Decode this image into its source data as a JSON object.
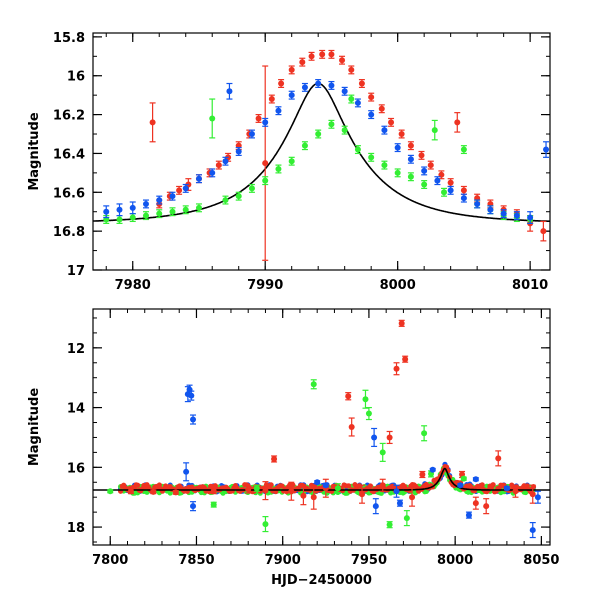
{
  "colors": {
    "red": "#ee3322",
    "green": "#33ee33",
    "blue": "#1155ee",
    "model": "#000000"
  },
  "chart_data": [
    {
      "type": "scatter",
      "title": "",
      "xlabel": "",
      "ylabel": "Magnitude",
      "xlim": [
        7977,
        8011.5
      ],
      "ylim": [
        17.0,
        15.78
      ],
      "y_inverted": true,
      "grid": false,
      "xticks": [
        7980,
        7990,
        8000,
        8010
      ],
      "yticks": [
        15.8,
        16,
        16.2,
        16.4,
        16.6,
        16.8,
        17
      ],
      "ytick_labels": [
        "15.8",
        "16",
        "16.2",
        "16.4",
        "16.6",
        "16.8",
        "17"
      ],
      "model_curve": {
        "baseline_mag": 16.76,
        "peak_mag": 16.04,
        "peak_time": 7994.0,
        "tE": 6.2
      },
      "series": [
        {
          "color": "red",
          "points": [
            [
              7981.5,
              16.24,
              0.1
            ],
            [
              7982.0,
              16.66,
              0.02
            ],
            [
              7982.8,
              16.62,
              0.02
            ],
            [
              7983.5,
              16.59,
              0.02
            ],
            [
              7984.2,
              16.56,
              0.03
            ],
            [
              7985.0,
              16.53,
              0.02
            ],
            [
              7985.8,
              16.5,
              0.02
            ],
            [
              7986.5,
              16.46,
              0.02
            ],
            [
              7987.2,
              16.42,
              0.02
            ],
            [
              7988.0,
              16.36,
              0.02
            ],
            [
              7988.8,
              16.3,
              0.02
            ],
            [
              7989.5,
              16.22,
              0.02
            ],
            [
              7990.0,
              16.45,
              0.5
            ],
            [
              7990.5,
              16.12,
              0.02
            ],
            [
              7991.2,
              16.04,
              0.02
            ],
            [
              7992.0,
              15.97,
              0.02
            ],
            [
              7992.8,
              15.93,
              0.02
            ],
            [
              7993.5,
              15.9,
              0.02
            ],
            [
              7994.3,
              15.89,
              0.02
            ],
            [
              7995.0,
              15.89,
              0.02
            ],
            [
              7995.8,
              15.92,
              0.02
            ],
            [
              7996.5,
              15.97,
              0.02
            ],
            [
              7997.3,
              16.04,
              0.02
            ],
            [
              7998.0,
              16.11,
              0.02
            ],
            [
              7998.8,
              16.17,
              0.02
            ],
            [
              7999.5,
              16.24,
              0.02
            ],
            [
              8000.3,
              16.3,
              0.02
            ],
            [
              8001.0,
              16.36,
              0.02
            ],
            [
              8001.8,
              16.41,
              0.02
            ],
            [
              8002.5,
              16.46,
              0.02
            ],
            [
              8003.3,
              16.51,
              0.02
            ],
            [
              8004.0,
              16.55,
              0.02
            ],
            [
              8004.5,
              16.24,
              0.05
            ],
            [
              8005.0,
              16.59,
              0.02
            ],
            [
              8006.0,
              16.63,
              0.02
            ],
            [
              8007.0,
              16.66,
              0.02
            ],
            [
              8008.0,
              16.69,
              0.02
            ],
            [
              8009.0,
              16.71,
              0.02
            ],
            [
              8010.0,
              16.76,
              0.04
            ],
            [
              8011.0,
              16.8,
              0.05
            ]
          ]
        },
        {
          "color": "green",
          "points": [
            [
              7978.0,
              16.74,
              0.02
            ],
            [
              7979.0,
              16.74,
              0.02
            ],
            [
              7980.0,
              16.73,
              0.02
            ],
            [
              7981.0,
              16.72,
              0.02
            ],
            [
              7982.0,
              16.71,
              0.02
            ],
            [
              7983.0,
              16.7,
              0.02
            ],
            [
              7984.0,
              16.69,
              0.02
            ],
            [
              7985.0,
              16.68,
              0.02
            ],
            [
              7986.0,
              16.22,
              0.1
            ],
            [
              7987.0,
              16.64,
              0.02
            ],
            [
              7988.0,
              16.62,
              0.02
            ],
            [
              7989.0,
              16.58,
              0.02
            ],
            [
              7990.0,
              16.54,
              0.02
            ],
            [
              7991.0,
              16.48,
              0.02
            ],
            [
              7992.0,
              16.44,
              0.02
            ],
            [
              7993.0,
              16.36,
              0.02
            ],
            [
              7994.0,
              16.3,
              0.02
            ],
            [
              7995.0,
              16.25,
              0.02
            ],
            [
              7996.0,
              16.28,
              0.02
            ],
            [
              7996.5,
              16.12,
              0.02
            ],
            [
              7997.0,
              16.38,
              0.02
            ],
            [
              7998.0,
              16.42,
              0.02
            ],
            [
              7999.0,
              16.46,
              0.02
            ],
            [
              8000.0,
              16.5,
              0.02
            ],
            [
              8001.0,
              16.52,
              0.02
            ],
            [
              8002.0,
              16.56,
              0.02
            ],
            [
              8002.8,
              16.28,
              0.05
            ],
            [
              8003.5,
              16.6,
              0.02
            ],
            [
              8005.0,
              16.38,
              0.02
            ],
            [
              8006.0,
              16.66,
              0.02
            ],
            [
              8007.0,
              16.69,
              0.02
            ],
            [
              8008.0,
              16.72,
              0.02
            ],
            [
              8009.0,
              16.73,
              0.02
            ],
            [
              8010.0,
              16.74,
              0.02
            ]
          ]
        },
        {
          "color": "blue",
          "points": [
            [
              7978.0,
              16.7,
              0.03
            ],
            [
              7979.0,
              16.69,
              0.03
            ],
            [
              7980.0,
              16.68,
              0.03
            ],
            [
              7981.0,
              16.66,
              0.02
            ],
            [
              7982.0,
              16.64,
              0.02
            ],
            [
              7983.0,
              16.62,
              0.02
            ],
            [
              7984.0,
              16.58,
              0.02
            ],
            [
              7985.0,
              16.53,
              0.02
            ],
            [
              7986.0,
              16.5,
              0.02
            ],
            [
              7987.0,
              16.44,
              0.02
            ],
            [
              7987.3,
              16.08,
              0.04
            ],
            [
              7988.0,
              16.39,
              0.02
            ],
            [
              7989.0,
              16.3,
              0.02
            ],
            [
              7990.0,
              16.24,
              0.02
            ],
            [
              7991.0,
              16.18,
              0.02
            ],
            [
              7992.0,
              16.1,
              0.02
            ],
            [
              7993.0,
              16.06,
              0.02
            ],
            [
              7994.0,
              16.04,
              0.02
            ],
            [
              7995.0,
              16.05,
              0.02
            ],
            [
              7996.0,
              16.08,
              0.02
            ],
            [
              7997.0,
              16.14,
              0.02
            ],
            [
              7998.0,
              16.2,
              0.02
            ],
            [
              7999.0,
              16.28,
              0.02
            ],
            [
              8000.0,
              16.37,
              0.02
            ],
            [
              8001.0,
              16.43,
              0.02
            ],
            [
              8002.0,
              16.49,
              0.02
            ],
            [
              8003.0,
              16.54,
              0.02
            ],
            [
              8004.0,
              16.59,
              0.02
            ],
            [
              8005.0,
              16.63,
              0.02
            ],
            [
              8006.0,
              16.66,
              0.02
            ],
            [
              8007.0,
              16.69,
              0.02
            ],
            [
              8008.0,
              16.71,
              0.02
            ],
            [
              8009.0,
              16.72,
              0.02
            ],
            [
              8010.0,
              16.73,
              0.03
            ],
            [
              8011.2,
              16.38,
              0.04
            ]
          ]
        }
      ]
    },
    {
      "type": "scatter",
      "title": "",
      "xlabel": "HJD−2450000",
      "ylabel": "Magnitude",
      "xlim": [
        7790,
        8055
      ],
      "ylim": [
        18.6,
        10.7
      ],
      "y_inverted": true,
      "grid": false,
      "xticks": [
        7800,
        7850,
        7900,
        7950,
        8000,
        8050
      ],
      "yticks": [
        12,
        14,
        16,
        18
      ],
      "ytick_labels": [
        "12",
        "14",
        "16",
        "18"
      ],
      "model_curve": {
        "baseline_mag": 16.76,
        "peak_mag": 16.04,
        "peak_time": 7994.0,
        "tE": 6.2
      },
      "series": [
        {
          "color": "red",
          "points": [
            [
              7812,
              16.8,
              0.08
            ],
            [
              7825,
              16.82,
              0.06
            ],
            [
              7838,
              16.84,
              0.06
            ],
            [
              7860,
              16.8,
              0.08
            ],
            [
              7880,
              16.74,
              0.12
            ],
            [
              7890,
              16.78,
              0.3
            ],
            [
              7895,
              15.72,
              0.1
            ],
            [
              7905,
              16.8,
              0.3
            ],
            [
              7912,
              16.95,
              0.3
            ],
            [
              7918,
              17.0,
              0.4
            ],
            [
              7925,
              16.7,
              0.3
            ],
            [
              7938,
              13.62,
              0.12
            ],
            [
              7940,
              14.65,
              0.3
            ],
            [
              7946,
              16.9,
              0.3
            ],
            [
              7958,
              16.6,
              0.2
            ],
            [
              7962,
              15.0,
              0.2
            ],
            [
              7966,
              12.7,
              0.2
            ],
            [
              7969,
              11.18,
              0.1
            ],
            [
              7971,
              12.38,
              0.1
            ],
            [
              7975,
              17.0,
              0.3
            ],
            [
              7981,
              16.24,
              0.1
            ],
            [
              8004,
              16.24,
              0.1
            ],
            [
              8012,
              17.2,
              0.2
            ],
            [
              8018,
              17.3,
              0.25
            ],
            [
              8025,
              15.7,
              0.25
            ],
            [
              8035,
              16.8,
              0.2
            ],
            [
              8045,
              16.9,
              0.3
            ]
          ]
        },
        {
          "color": "green",
          "points": [
            [
              7800,
              16.8,
              0.05
            ],
            [
              7860,
              17.25,
              0.08
            ],
            [
              7885,
              16.7,
              0.1
            ],
            [
              7890,
              17.9,
              0.25
            ],
            [
              7918,
              13.22,
              0.15
            ],
            [
              7932,
              16.7,
              0.15
            ],
            [
              7948,
              13.72,
              0.3
            ],
            [
              7950,
              14.2,
              0.2
            ],
            [
              7958,
              15.5,
              0.3
            ],
            [
              7962,
              17.92,
              0.1
            ],
            [
              7972,
              17.7,
              0.25
            ],
            [
              7982,
              14.86,
              0.25
            ],
            [
              7986,
              16.22,
              0.1
            ],
            [
              8005,
              16.38,
              0.05
            ]
          ]
        },
        {
          "color": "blue",
          "points": [
            [
              7845,
              13.55,
              0.25
            ],
            [
              7846,
              13.4,
              0.15
            ],
            [
              7847,
              13.6,
              0.15
            ],
            [
              7848,
              14.4,
              0.15
            ],
            [
              7844,
              16.15,
              0.3
            ],
            [
              7848,
              17.3,
              0.15
            ],
            [
              7920,
              16.5,
              0.05
            ],
            [
              7925,
              16.6,
              0.05
            ],
            [
              7953,
              15.0,
              0.3
            ],
            [
              7954,
              17.3,
              0.25
            ],
            [
              7966,
              16.8,
              0.2
            ],
            [
              7968,
              17.2,
              0.1
            ],
            [
              7987,
              16.08,
              0.04
            ],
            [
              8003,
              16.6,
              0.05
            ],
            [
              8008,
              17.6,
              0.1
            ],
            [
              8012,
              16.4,
              0.05
            ],
            [
              8030,
              16.7,
              0.05
            ],
            [
              8045,
              18.1,
              0.25
            ],
            [
              8048,
              17.0,
              0.2
            ]
          ]
        }
      ]
    }
  ]
}
